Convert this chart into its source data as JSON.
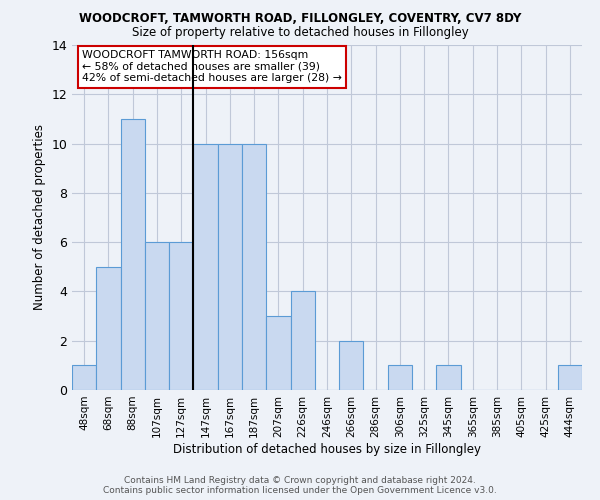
{
  "title": "WOODCROFT, TAMWORTH ROAD, FILLONGLEY, COVENTRY, CV7 8DY",
  "subtitle": "Size of property relative to detached houses in Fillongley",
  "xlabel": "Distribution of detached houses by size in Fillongley",
  "ylabel": "Number of detached properties",
  "categories": [
    "48sqm",
    "68sqm",
    "88sqm",
    "107sqm",
    "127sqm",
    "147sqm",
    "167sqm",
    "187sqm",
    "207sqm",
    "226sqm",
    "246sqm",
    "266sqm",
    "286sqm",
    "306sqm",
    "325sqm",
    "345sqm",
    "365sqm",
    "385sqm",
    "405sqm",
    "425sqm",
    "444sqm"
  ],
  "values": [
    1,
    5,
    11,
    6,
    6,
    10,
    10,
    10,
    3,
    4,
    0,
    2,
    0,
    1,
    0,
    1,
    0,
    0,
    0,
    0,
    1
  ],
  "bar_color": "#c9d9f0",
  "bar_edge_color": "#5b9bd5",
  "highlight_index": 5,
  "highlight_line_color": "#000000",
  "ylim": [
    0,
    14
  ],
  "yticks": [
    0,
    2,
    4,
    6,
    8,
    10,
    12,
    14
  ],
  "annotation_title": "WOODCROFT TAMWORTH ROAD: 156sqm",
  "annotation_line1": "← 58% of detached houses are smaller (39)",
  "annotation_line2": "42% of semi-detached houses are larger (28) →",
  "annotation_box_color": "#ffffff",
  "annotation_box_edge": "#cc0000",
  "grid_color": "#c0c8d8",
  "background_color": "#eef2f8",
  "footer_line1": "Contains HM Land Registry data © Crown copyright and database right 2024.",
  "footer_line2": "Contains public sector information licensed under the Open Government Licence v3.0."
}
